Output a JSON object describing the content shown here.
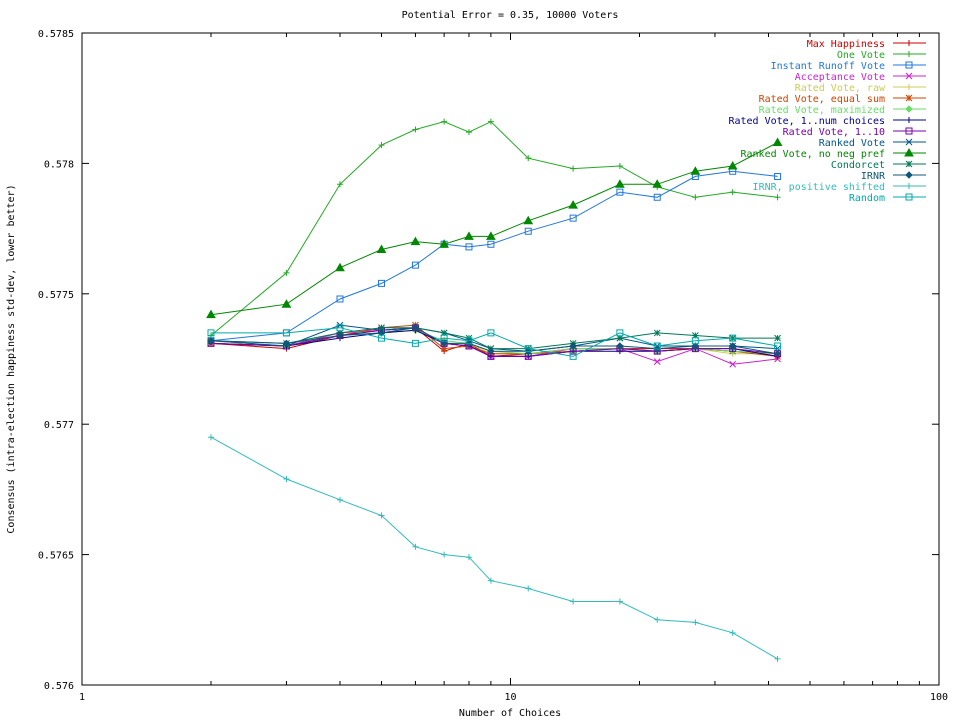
{
  "chart_data": {
    "type": "line",
    "title": "Potential Error = 0.35, 10000 Voters",
    "xlabel": "Number of Choices",
    "ylabel": "Consensus (intra-election happiness std-dev, lower better)",
    "xscale": "log",
    "xlim": [
      1,
      100
    ],
    "ylim": [
      0.576,
      0.5785
    ],
    "xticks": [
      1,
      10,
      100
    ],
    "xtick_labels": [
      "1",
      "10",
      "100"
    ],
    "yticks": [
      0.576,
      0.5765,
      0.577,
      0.5775,
      0.578,
      0.5785
    ],
    "ytick_labels": [
      "0.576",
      "0.5765",
      "0.577",
      "0.5775",
      "0.578",
      "0.5785"
    ],
    "grid": false,
    "legend_position": "top-right",
    "x": [
      2,
      3,
      4,
      5,
      6,
      7,
      8,
      9,
      11,
      14,
      18,
      22,
      27,
      33,
      42
    ],
    "series": [
      {
        "name": "Max Happiness",
        "color": "#cc0000",
        "marker": "plus",
        "values": [
          0.57731,
          0.57729,
          0.57734,
          0.57736,
          0.57737,
          0.57728,
          0.57731,
          0.57726,
          0.57727,
          0.57729,
          0.57729,
          0.57729,
          0.57729,
          0.57728,
          0.57727
        ]
      },
      {
        "name": "One Vote",
        "color": "#22aa22",
        "marker": "plus",
        "values": [
          0.57734,
          0.57758,
          0.57792,
          0.57807,
          0.57813,
          0.57816,
          0.57812,
          0.57816,
          0.57802,
          0.57798,
          0.57799,
          0.57791,
          0.57787,
          0.57789,
          0.57787
        ]
      },
      {
        "name": "Instant Runoff Vote",
        "color": "#2277dd",
        "marker": "square",
        "values": [
          0.57732,
          0.57735,
          0.57748,
          0.57754,
          0.57761,
          0.57769,
          0.57768,
          0.57769,
          0.57774,
          0.57779,
          0.57789,
          0.57787,
          0.57795,
          0.57797,
          0.57795
        ]
      },
      {
        "name": "Acceptance Vote",
        "color": "#cc22cc",
        "marker": "x",
        "values": [
          0.57731,
          0.5773,
          0.57735,
          0.57736,
          0.57737,
          0.57731,
          0.5773,
          0.57726,
          0.57726,
          0.57729,
          0.57729,
          0.57724,
          0.57729,
          0.57723,
          0.57725
        ]
      },
      {
        "name": "Rated Vote, raw",
        "color": "#cccc55",
        "marker": "plus",
        "values": [
          0.57732,
          0.5773,
          0.57734,
          0.57735,
          0.57736,
          0.57731,
          0.57731,
          0.57727,
          0.57727,
          0.57729,
          0.57729,
          0.57728,
          0.57729,
          0.57727,
          0.57727
        ]
      },
      {
        "name": "Rated Vote, equal sum",
        "color": "#cc4400",
        "marker": "star",
        "values": [
          0.57731,
          0.5773,
          0.57734,
          0.57737,
          0.57738,
          0.57729,
          0.5773,
          0.57727,
          0.57727,
          0.57728,
          0.57729,
          0.57728,
          0.57729,
          0.57728,
          0.57726
        ]
      },
      {
        "name": "Rated Vote, maximized",
        "color": "#66dd66",
        "marker": "diamond",
        "values": [
          0.57732,
          0.5773,
          0.57734,
          0.57735,
          0.57736,
          0.57732,
          0.57731,
          0.57728,
          0.57727,
          0.57729,
          0.57729,
          0.57728,
          0.57729,
          0.57728,
          0.57727
        ]
      },
      {
        "name": "Rated Vote, 1..num choices",
        "color": "#000088",
        "marker": "plus",
        "values": [
          0.57731,
          0.5773,
          0.57733,
          0.57735,
          0.57736,
          0.57731,
          0.5773,
          0.57726,
          0.57726,
          0.57728,
          0.57728,
          0.57728,
          0.57729,
          0.57729,
          0.57726
        ]
      },
      {
        "name": "Rated Vote, 1..10",
        "color": "#7700aa",
        "marker": "square",
        "values": [
          0.57731,
          0.5773,
          0.57734,
          0.57736,
          0.57737,
          0.57731,
          0.5773,
          0.57726,
          0.57726,
          0.57728,
          0.57729,
          0.57728,
          0.57729,
          0.57729,
          0.57727
        ]
      },
      {
        "name": "Ranked Vote",
        "color": "#005588",
        "marker": "x",
        "values": [
          0.57732,
          0.5773,
          0.57738,
          0.57736,
          0.57737,
          0.57735,
          0.57732,
          0.57729,
          0.57728,
          0.5773,
          0.57733,
          0.5773,
          0.5773,
          0.5773,
          0.57729
        ]
      },
      {
        "name": "Ranked Vote, no neg pref",
        "color": "#008800",
        "marker": "triangle",
        "values": [
          0.57742,
          0.57746,
          0.5776,
          0.57767,
          0.5777,
          0.57769,
          0.57772,
          0.57772,
          0.57778,
          0.57784,
          0.57792,
          0.57792,
          0.57797,
          0.57799,
          0.57808
        ]
      },
      {
        "name": "Condorcet",
        "color": "#007755",
        "marker": "star",
        "values": [
          0.57732,
          0.57731,
          0.57735,
          0.57737,
          0.57737,
          0.57735,
          0.57733,
          0.57729,
          0.57729,
          0.57731,
          0.57733,
          0.57735,
          0.57734,
          0.57733,
          0.57733
        ]
      },
      {
        "name": "IRNR",
        "color": "#115577",
        "marker": "diamond",
        "values": [
          0.57732,
          0.57731,
          0.57734,
          0.57735,
          0.57737,
          0.57731,
          0.57731,
          0.57728,
          0.57728,
          0.5773,
          0.5773,
          0.57729,
          0.5773,
          0.5773,
          0.57727
        ]
      },
      {
        "name": "IRNR, positive shifted",
        "color": "#33bbbb",
        "marker": "plus",
        "values": [
          0.57695,
          0.57679,
          0.57671,
          0.57665,
          0.57653,
          0.5765,
          0.57649,
          0.5764,
          0.57637,
          0.57632,
          0.57632,
          0.57625,
          0.57624,
          0.5762,
          0.5761
        ]
      },
      {
        "name": "Random",
        "color": "#00aaaa",
        "marker": "square",
        "values": [
          0.57735,
          0.57735,
          0.57737,
          0.57733,
          0.57731,
          0.57733,
          0.57732,
          0.57735,
          0.57729,
          0.57726,
          0.57735,
          0.5773,
          0.57732,
          0.57733,
          0.5773
        ]
      }
    ]
  }
}
